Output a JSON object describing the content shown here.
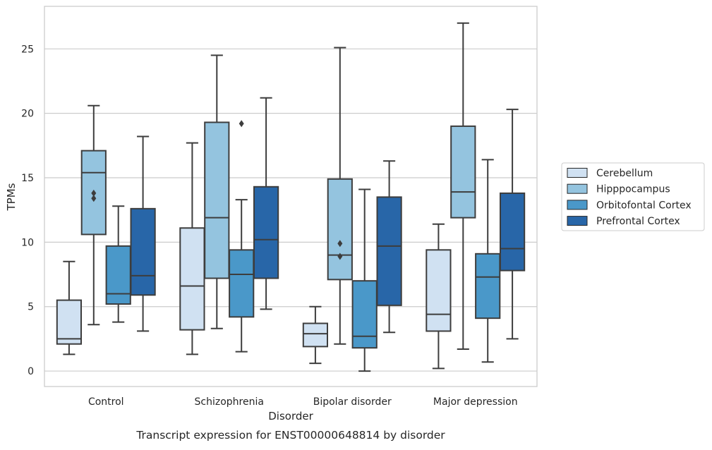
{
  "chart_data": {
    "type": "box",
    "title": "",
    "caption": "Transcript expression for ENST00000648814 by disorder",
    "xlabel": "Disorder",
    "ylabel": "TPMs",
    "ylim": [
      -1.2,
      28.3
    ],
    "yticks": [
      0,
      5,
      10,
      15,
      20,
      25
    ],
    "grid": "horizontal",
    "legend_position": "right",
    "categories": [
      "Control",
      "Schizophrenia",
      "Bipolar disorder",
      "Major depression"
    ],
    "series": [
      {
        "name": "Cerebellum",
        "color": "#d0e1f2",
        "boxes": [
          {
            "whisker_low": 1.3,
            "q1": 2.1,
            "median": 2.5,
            "q3": 5.5,
            "whisker_high": 8.5,
            "outliers": []
          },
          {
            "whisker_low": 1.3,
            "q1": 3.2,
            "median": 6.6,
            "q3": 11.1,
            "whisker_high": 17.7,
            "outliers": []
          },
          {
            "whisker_low": 0.6,
            "q1": 1.9,
            "median": 2.9,
            "q3": 3.7,
            "whisker_high": 5.0,
            "outliers": []
          },
          {
            "whisker_low": 0.2,
            "q1": 3.1,
            "median": 4.4,
            "q3": 9.4,
            "whisker_high": 11.4,
            "outliers": []
          }
        ]
      },
      {
        "name": "Hipppocampus",
        "color": "#94c4df",
        "boxes": [
          {
            "whisker_low": 3.6,
            "q1": 10.6,
            "median": 15.4,
            "q3": 17.1,
            "whisker_high": 20.6,
            "outliers": [
              13.4,
              13.8
            ]
          },
          {
            "whisker_low": 3.3,
            "q1": 7.2,
            "median": 11.9,
            "q3": 19.3,
            "whisker_high": 24.5,
            "outliers": []
          },
          {
            "whisker_low": 2.1,
            "q1": 7.1,
            "median": 9.0,
            "q3": 14.9,
            "whisker_high": 25.1,
            "outliers": [
              8.9,
              9.9
            ]
          },
          {
            "whisker_low": 1.7,
            "q1": 11.9,
            "median": 13.9,
            "q3": 19.0,
            "whisker_high": 27.0,
            "outliers": []
          }
        ]
      },
      {
        "name": "Orbitofontal Cortex",
        "color": "#4a98c9",
        "boxes": [
          {
            "whisker_low": 3.8,
            "q1": 5.2,
            "median": 6.0,
            "q3": 9.7,
            "whisker_high": 12.8,
            "outliers": []
          },
          {
            "whisker_low": 1.5,
            "q1": 4.2,
            "median": 7.5,
            "q3": 9.4,
            "whisker_high": 13.3,
            "outliers": [
              19.2
            ]
          },
          {
            "whisker_low": 0.0,
            "q1": 1.8,
            "median": 2.7,
            "q3": 7.0,
            "whisker_high": 14.1,
            "outliers": []
          },
          {
            "whisker_low": 0.7,
            "q1": 4.1,
            "median": 7.3,
            "q3": 9.1,
            "whisker_high": 16.4,
            "outliers": []
          }
        ]
      },
      {
        "name": "Prefrontal Cortex",
        "color": "#2866a8",
        "boxes": [
          {
            "whisker_low": 3.1,
            "q1": 5.9,
            "median": 7.4,
            "q3": 12.6,
            "whisker_high": 18.2,
            "outliers": []
          },
          {
            "whisker_low": 4.8,
            "q1": 7.2,
            "median": 10.2,
            "q3": 14.3,
            "whisker_high": 21.2,
            "outliers": []
          },
          {
            "whisker_low": 3.0,
            "q1": 5.1,
            "median": 9.7,
            "q3": 13.5,
            "whisker_high": 16.3,
            "outliers": []
          },
          {
            "whisker_low": 2.5,
            "q1": 7.8,
            "median": 9.5,
            "q3": 13.8,
            "whisker_high": 20.3,
            "outliers": []
          }
        ]
      }
    ]
  }
}
